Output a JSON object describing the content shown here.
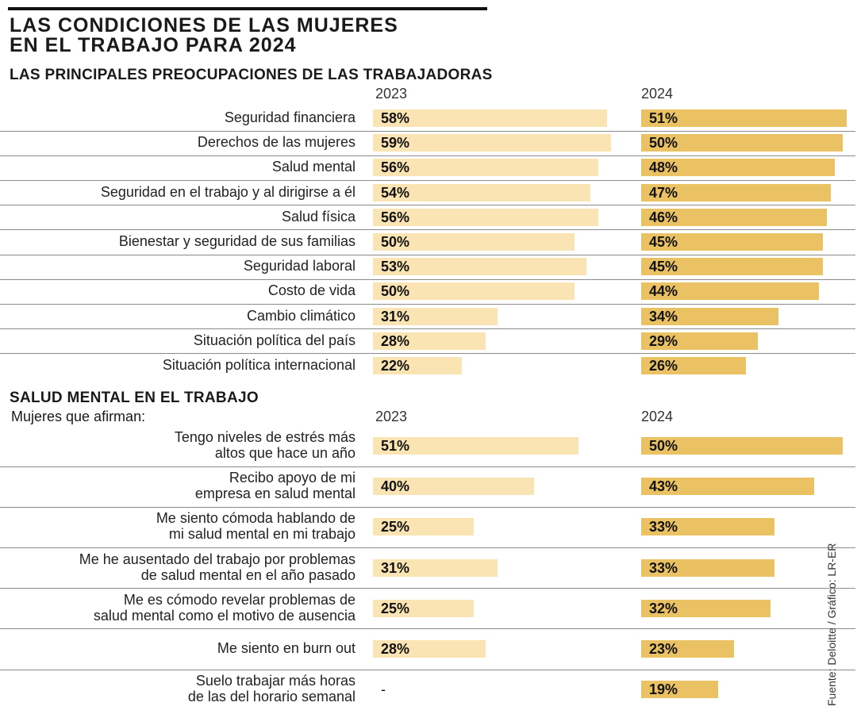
{
  "title_line1": "LAS CONDICIONES DE LAS MUJERES",
  "title_line2": "EN EL TRABAJO PARA 2024",
  "source": "Fuente: Deloitte / Gráfico: LR-ER",
  "colors": {
    "y2023": "#fbe4b3",
    "y2024": "#eac264"
  },
  "chart_data": [
    {
      "type": "bar",
      "title": "LAS PRINCIPALES PREOCUPACIONES DE LAS TRABAJADORAS",
      "series_names": [
        "2023",
        "2024"
      ],
      "categories": [
        "Seguridad financiera",
        "Derechos de las mujeres",
        "Salud mental",
        "Seguridad en el trabajo y al dirigirse a él",
        "Salud física",
        "Bienestar y seguridad de sus familias",
        "Seguridad laboral",
        "Costo de vida",
        "Cambio climático",
        "Situación política del país",
        "Situación política internacional"
      ],
      "series": [
        {
          "name": "2023",
          "values": [
            58,
            59,
            56,
            54,
            56,
            50,
            53,
            50,
            31,
            28,
            22
          ],
          "labels": [
            "58%",
            "59%",
            "56%",
            "54%",
            "56%",
            "50%",
            "53%",
            "50%",
            "31%",
            "28%",
            "22%"
          ]
        },
        {
          "name": "2024",
          "values": [
            51,
            50,
            48,
            47,
            46,
            45,
            45,
            44,
            34,
            29,
            26
          ],
          "labels": [
            "51%",
            "50%",
            "48%",
            "47%",
            "46%",
            "45%",
            "45%",
            "44%",
            "34%",
            "29%",
            "26%"
          ]
        }
      ],
      "unit": "%"
    },
    {
      "type": "bar",
      "title": "SALUD MENTAL EN EL TRABAJO",
      "subtitle": "Mujeres que afirman:",
      "series_names": [
        "2023",
        "2024"
      ],
      "categories": [
        "Tengo niveles de estrés más\naltos que hace un año",
        "Recibo apoyo de mi\nempresa en salud mental",
        "Me siento cómoda hablando de\nmi salud mental en mi trabajo",
        "Me he ausentado del trabajo por problemas\nde salud mental en el año pasado",
        "Me es cómodo revelar problemas de\nsalud mental como el motivo de ausencia",
        "Me siento en burn out",
        "Suelo trabajar más horas\nde las del horario semanal"
      ],
      "series": [
        {
          "name": "2023",
          "values": [
            51,
            40,
            25,
            31,
            25,
            28,
            null
          ],
          "labels": [
            "51%",
            "40%",
            "25%",
            "31%",
            "25%",
            "28%",
            "-"
          ]
        },
        {
          "name": "2024",
          "values": [
            50,
            43,
            33,
            33,
            32,
            23,
            19
          ],
          "labels": [
            "50%",
            "43%",
            "33%",
            "33%",
            "32%",
            "23%",
            "19%"
          ]
        }
      ],
      "unit": "%"
    }
  ]
}
